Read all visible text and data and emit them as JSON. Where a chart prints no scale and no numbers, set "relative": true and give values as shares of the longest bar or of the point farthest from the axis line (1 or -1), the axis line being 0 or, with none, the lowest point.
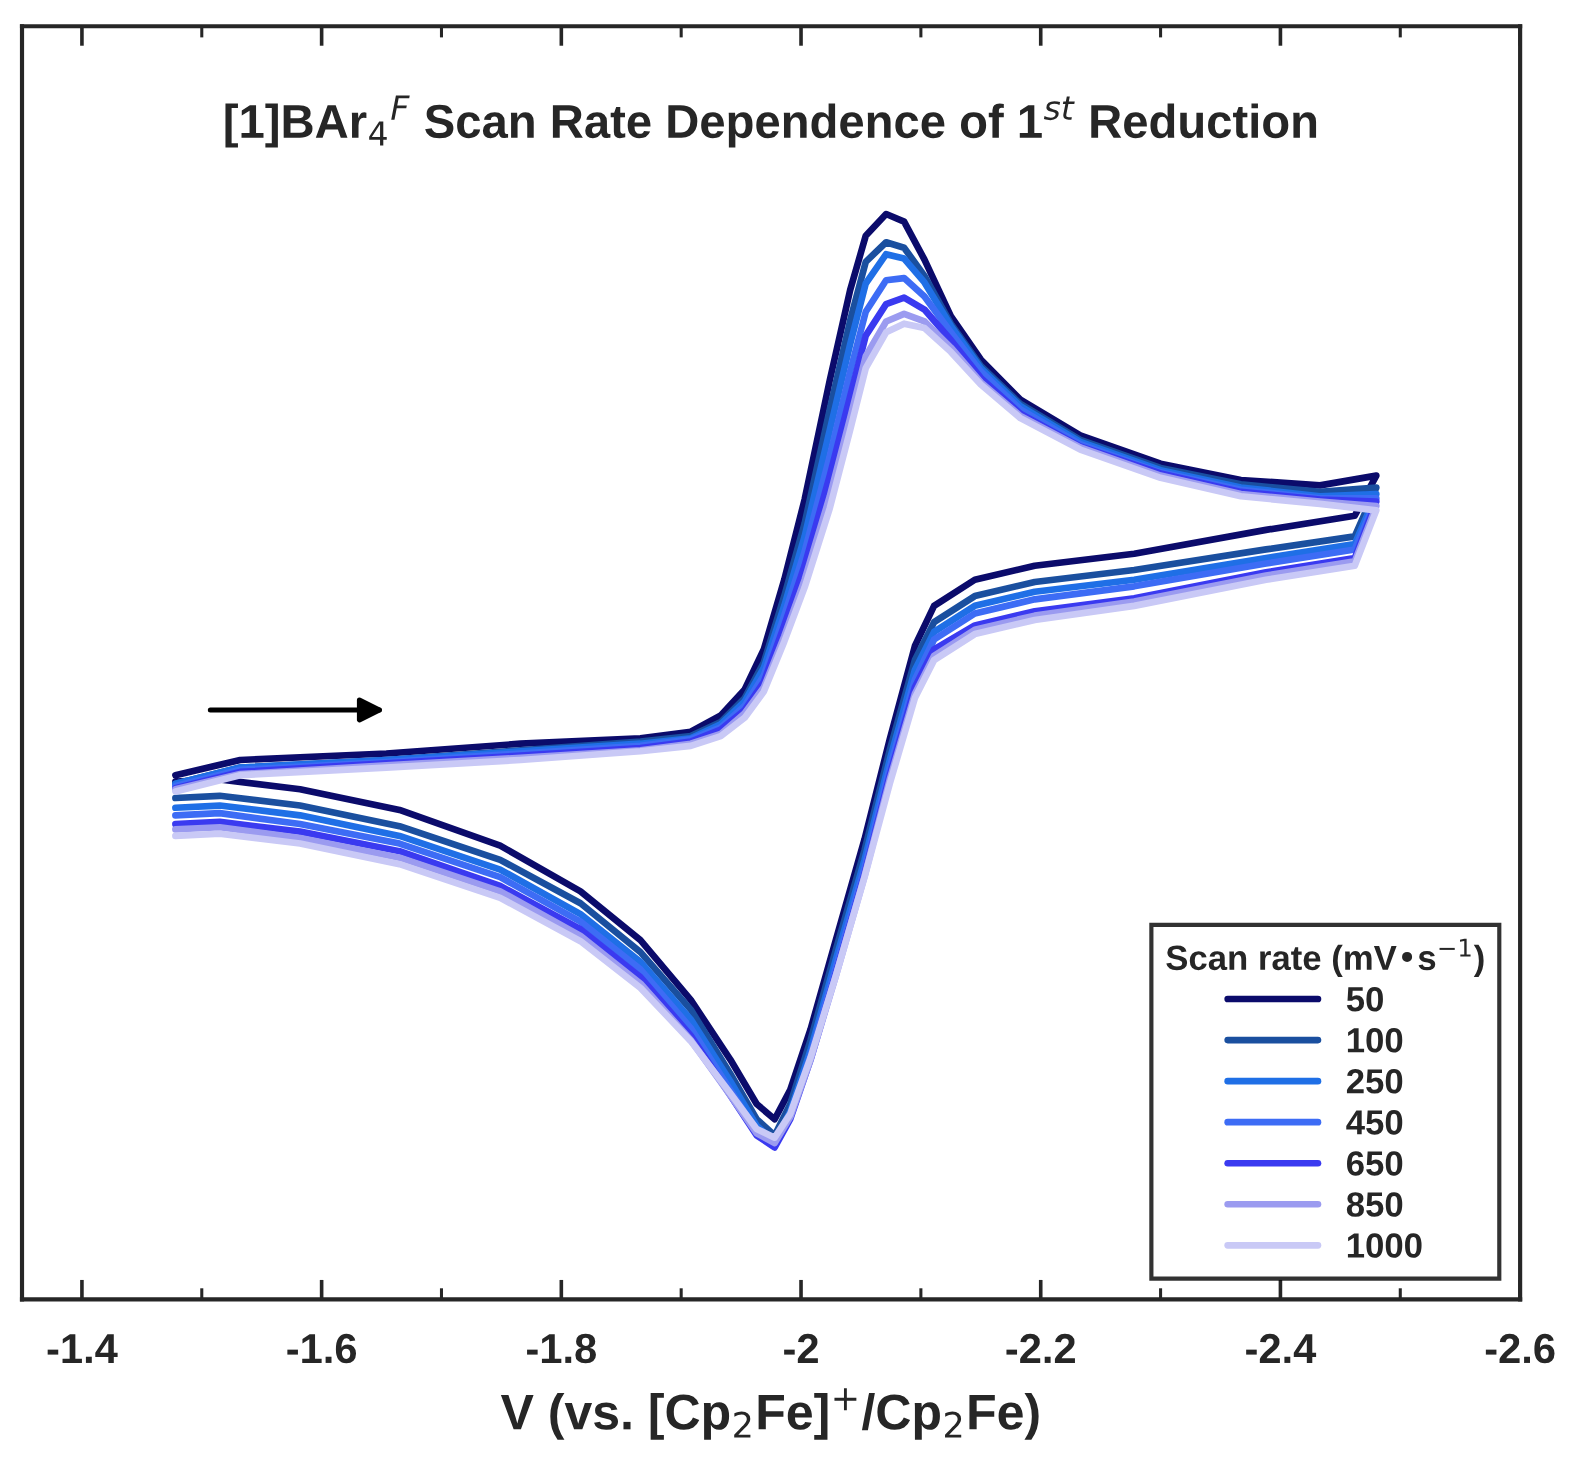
{
  "chart_data": {
    "type": "line",
    "title": "[1]BAr$_{4}$$^{F}$ Scan Rate Dependence of 1$^{st}$ Reduction",
    "xlabel": "V (vs. [Cp$_{2}$Fe]$^{+}$/Cp$_{2}$Fe)",
    "legend_title": "Scan rate (mV•s$^{−1}$)",
    "legend": "bottom right",
    "relative": true,
    "xlim": [
      -1.35,
      -2.6
    ],
    "xticks": [
      -1.4,
      -1.6,
      -1.8,
      -2,
      -2.2,
      -2.4,
      -2.6
    ],
    "x": [
      -1.478,
      -1.532,
      -1.654,
      -1.766,
      -1.866,
      -1.908,
      -1.933,
      -1.953,
      -1.969,
      -1.986,
      -2.003,
      -2.024,
      -2.041,
      -2.054,
      -2.071,
      -2.086,
      -2.103,
      -2.125,
      -2.15,
      -2.183,
      -2.233,
      -2.3,
      -2.367,
      -2.433,
      -2.48,
      -2.462,
      -2.388,
      -2.278,
      -2.195,
      -2.145,
      -2.111,
      -2.095,
      -2.074,
      -2.053,
      -2.029,
      -2.008,
      -1.991,
      -1.978,
      -1.963,
      -1.941,
      -1.908,
      -1.866,
      -1.816,
      -1.749,
      -1.665,
      -1.582,
      -1.515,
      -1.478
    ],
    "series": [
      {
        "name": "50",
        "color": "#0b0b6b",
        "values": [
          0.483,
          0.497,
          0.503,
          0.512,
          0.517,
          0.523,
          0.538,
          0.562,
          0.599,
          0.663,
          0.737,
          0.847,
          0.93,
          0.98,
          1.0,
          0.993,
          0.958,
          0.906,
          0.866,
          0.829,
          0.796,
          0.77,
          0.755,
          0.75,
          0.759,
          0.722,
          0.709,
          0.687,
          0.676,
          0.663,
          0.639,
          0.602,
          0.516,
          0.424,
          0.331,
          0.249,
          0.193,
          0.166,
          0.18,
          0.221,
          0.276,
          0.331,
          0.376,
          0.418,
          0.451,
          0.47,
          0.479,
          0.477
        ]
      },
      {
        "name": "100",
        "color": "#1a4f9f",
        "values": [
          0.475,
          0.49,
          0.497,
          0.506,
          0.514,
          0.519,
          0.532,
          0.554,
          0.587,
          0.648,
          0.715,
          0.82,
          0.902,
          0.956,
          0.974,
          0.969,
          0.943,
          0.899,
          0.86,
          0.825,
          0.792,
          0.766,
          0.751,
          0.744,
          0.748,
          0.703,
          0.691,
          0.672,
          0.661,
          0.648,
          0.624,
          0.589,
          0.506,
          0.414,
          0.322,
          0.239,
          0.18,
          0.151,
          0.166,
          0.208,
          0.267,
          0.32,
          0.365,
          0.405,
          0.436,
          0.455,
          0.464,
          0.462
        ]
      },
      {
        "name": "250",
        "color": "#1f6fe6",
        "values": [
          0.475,
          0.49,
          0.497,
          0.505,
          0.512,
          0.517,
          0.53,
          0.551,
          0.582,
          0.639,
          0.703,
          0.801,
          0.88,
          0.936,
          0.963,
          0.959,
          0.937,
          0.897,
          0.858,
          0.823,
          0.79,
          0.764,
          0.748,
          0.74,
          0.742,
          0.696,
          0.683,
          0.663,
          0.652,
          0.639,
          0.615,
          0.58,
          0.497,
          0.405,
          0.313,
          0.23,
          0.173,
          0.145,
          0.16,
          0.201,
          0.258,
          0.311,
          0.355,
          0.396,
          0.427,
          0.446,
          0.455,
          0.453
        ]
      },
      {
        "name": "450",
        "color": "#3d6cf5",
        "values": [
          0.473,
          0.488,
          0.495,
          0.503,
          0.51,
          0.516,
          0.527,
          0.547,
          0.575,
          0.63,
          0.689,
          0.777,
          0.855,
          0.91,
          0.939,
          0.941,
          0.924,
          0.891,
          0.855,
          0.82,
          0.788,
          0.762,
          0.746,
          0.738,
          0.738,
          0.691,
          0.678,
          0.657,
          0.645,
          0.632,
          0.608,
          0.571,
          0.49,
          0.398,
          0.306,
          0.225,
          0.169,
          0.142,
          0.155,
          0.193,
          0.25,
          0.304,
          0.348,
          0.389,
          0.42,
          0.438,
          0.448,
          0.446
        ]
      },
      {
        "name": "650",
        "color": "#3a3af0",
        "values": [
          0.471,
          0.486,
          0.494,
          0.501,
          0.508,
          0.514,
          0.525,
          0.543,
          0.569,
          0.621,
          0.676,
          0.759,
          0.832,
          0.888,
          0.917,
          0.923,
          0.912,
          0.884,
          0.849,
          0.816,
          0.786,
          0.761,
          0.744,
          0.737,
          0.735,
          0.683,
          0.67,
          0.646,
          0.634,
          0.621,
          0.599,
          0.564,
          0.483,
          0.392,
          0.3,
          0.221,
          0.166,
          0.14,
          0.151,
          0.188,
          0.243,
          0.297,
          0.341,
          0.381,
          0.413,
          0.431,
          0.44,
          0.438
        ]
      },
      {
        "name": "850",
        "color": "#9b9bf0",
        "values": [
          0.47,
          0.484,
          0.492,
          0.499,
          0.506,
          0.512,
          0.521,
          0.54,
          0.564,
          0.611,
          0.663,
          0.74,
          0.812,
          0.869,
          0.901,
          0.908,
          0.901,
          0.877,
          0.845,
          0.814,
          0.785,
          0.759,
          0.742,
          0.735,
          0.731,
          0.68,
          0.667,
          0.643,
          0.63,
          0.617,
          0.593,
          0.558,
          0.479,
          0.39,
          0.298,
          0.221,
          0.168,
          0.144,
          0.153,
          0.188,
          0.239,
          0.291,
          0.335,
          0.376,
          0.407,
          0.425,
          0.435,
          0.433
        ]
      },
      {
        "name": "1000",
        "color": "#c9c9f6",
        "values": [
          0.468,
          0.483,
          0.49,
          0.497,
          0.505,
          0.51,
          0.519,
          0.536,
          0.56,
          0.606,
          0.656,
          0.729,
          0.801,
          0.858,
          0.891,
          0.899,
          0.895,
          0.873,
          0.843,
          0.812,
          0.783,
          0.757,
          0.74,
          0.733,
          0.727,
          0.676,
          0.663,
          0.639,
          0.626,
          0.613,
          0.589,
          0.554,
          0.475,
          0.389,
          0.298,
          0.223,
          0.171,
          0.149,
          0.157,
          0.19,
          0.238,
          0.287,
          0.33,
          0.37,
          0.401,
          0.42,
          0.429,
          0.427
        ]
      }
    ]
  }
}
